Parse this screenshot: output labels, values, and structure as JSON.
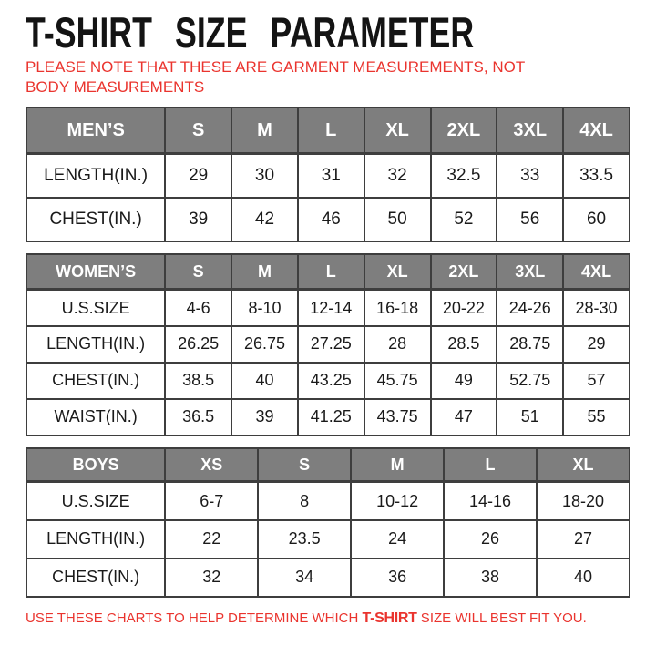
{
  "page": {
    "title": "T-SHIRT SIZE PARAMETER",
    "note": "PLEASE NOTE THAT THESE ARE GARMENT MEASUREMENTS, NOT BODY MEASUREMENTS",
    "footer_prefix": "USE THESE CHARTS TO HELP DETERMINE WHICH ",
    "footer_emphasis": "T-SHIRT",
    "footer_suffix": " SIZE WILL BEST FIT YOU."
  },
  "colors": {
    "accent_red": "#ea342e",
    "header_gray": "#7e7e7e",
    "border_dark": "#3e3e3e",
    "text_dark": "#1a1a1a"
  },
  "chart_data": [
    {
      "type": "table",
      "id": "mens",
      "title": "MEN’S",
      "header": [
        "MEN’S",
        "S",
        "M",
        "L",
        "XL",
        "2XL",
        "3XL",
        "4XL"
      ],
      "rows": [
        {
          "label": "LENGTH(IN.)",
          "values": [
            "29",
            "30",
            "31",
            "32",
            "32.5",
            "33",
            "33.5"
          ]
        },
        {
          "label": "CHEST(IN.)",
          "values": [
            "39",
            "42",
            "46",
            "50",
            "52",
            "56",
            "60"
          ]
        }
      ]
    },
    {
      "type": "table",
      "id": "womens",
      "title": "WOMEN’S",
      "header": [
        "WOMEN’S",
        "S",
        "M",
        "L",
        "XL",
        "2XL",
        "3XL",
        "4XL"
      ],
      "rows": [
        {
          "label": "U.S.SIZE",
          "values": [
            "4-6",
            "8-10",
            "12-14",
            "16-18",
            "20-22",
            "24-26",
            "28-30"
          ]
        },
        {
          "label": "LENGTH(IN.)",
          "values": [
            "26.25",
            "26.75",
            "27.25",
            "28",
            "28.5",
            "28.75",
            "29"
          ]
        },
        {
          "label": "CHEST(IN.)",
          "values": [
            "38.5",
            "40",
            "43.25",
            "45.75",
            "49",
            "52.75",
            "57"
          ]
        },
        {
          "label": "WAIST(IN.)",
          "values": [
            "36.5",
            "39",
            "41.25",
            "43.75",
            "47",
            "51",
            "55"
          ]
        }
      ]
    },
    {
      "type": "table",
      "id": "boys",
      "title": "BOYS",
      "header": [
        "BOYS",
        "XS",
        "S",
        "M",
        "L",
        "XL"
      ],
      "rows": [
        {
          "label": "U.S.SIZE",
          "values": [
            "6-7",
            "8",
            "10-12",
            "14-16",
            "18-20"
          ]
        },
        {
          "label": "LENGTH(IN.)",
          "values": [
            "22",
            "23.5",
            "24",
            "26",
            "27"
          ]
        },
        {
          "label": "CHEST(IN.)",
          "values": [
            "32",
            "34",
            "36",
            "38",
            "40"
          ]
        }
      ]
    }
  ]
}
